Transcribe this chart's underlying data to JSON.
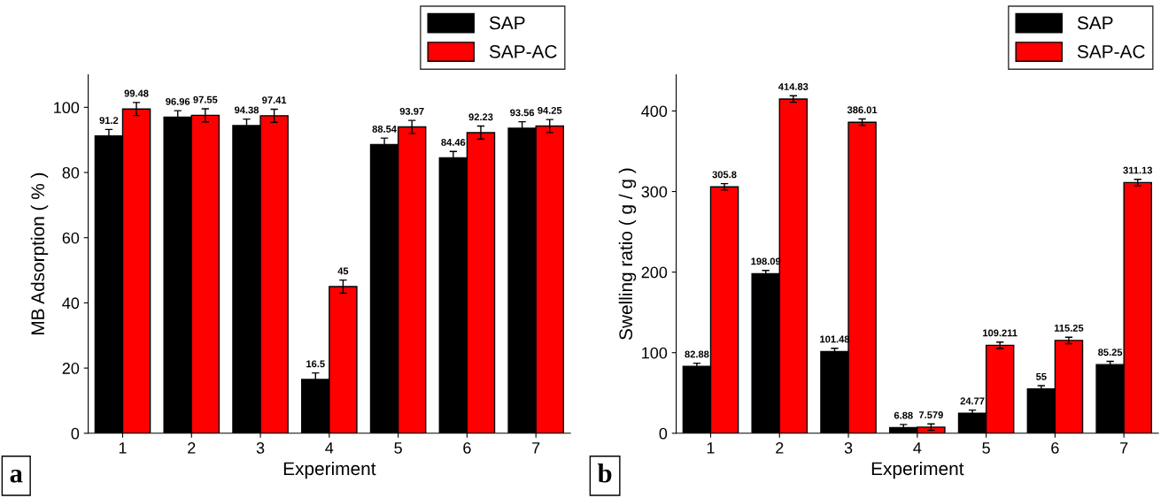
{
  "chart_data": [
    {
      "type": "bar",
      "xlabel": "Experiment",
      "ylabel": "MB Adsorption ( % )",
      "categories": [
        "1",
        "2",
        "3",
        "4",
        "5",
        "6",
        "7"
      ],
      "series": [
        {
          "name": "SAP",
          "color": "#000000",
          "values": [
            91.2,
            96.96,
            94.38,
            16.5,
            88.54,
            84.46,
            93.56
          ],
          "errors": [
            2,
            2,
            2,
            2,
            2,
            2,
            2
          ]
        },
        {
          "name": "SAP-AC",
          "color": "#ff0000",
          "values": [
            99.48,
            97.55,
            97.41,
            45,
            93.97,
            92.23,
            94.25
          ],
          "errors": [
            2,
            2,
            2,
            2,
            2,
            2,
            2
          ]
        }
      ],
      "ylim": [
        0,
        110
      ],
      "yticks": [
        0,
        20,
        40,
        60,
        80,
        100
      ],
      "data_labels": true,
      "legend": "top right",
      "grid": false,
      "annotations": [
        "a"
      ]
    },
    {
      "type": "bar",
      "xlabel": "Experiment",
      "ylabel": "Swelling ratio ( g / g )",
      "categories": [
        "1",
        "2",
        "3",
        "4",
        "5",
        "6",
        "7"
      ],
      "series": [
        {
          "name": "SAP",
          "color": "#000000",
          "values": [
            82.88,
            198.09,
            101.48,
            6.88,
            24.77,
            55,
            85.25
          ],
          "errors": [
            4,
            4,
            4,
            4,
            4,
            4,
            4
          ]
        },
        {
          "name": "SAP-AC",
          "color": "#ff0000",
          "values": [
            305.8,
            414.83,
            386.01,
            7.579,
            109.211,
            115.25,
            311.13
          ],
          "errors": [
            4,
            4,
            4,
            4,
            4,
            4,
            4
          ]
        }
      ],
      "ylim": [
        0,
        445
      ],
      "yticks": [
        0,
        100,
        200,
        300,
        400
      ],
      "data_labels": true,
      "legend": "top right",
      "grid": false,
      "annotations": [
        "b"
      ]
    }
  ]
}
